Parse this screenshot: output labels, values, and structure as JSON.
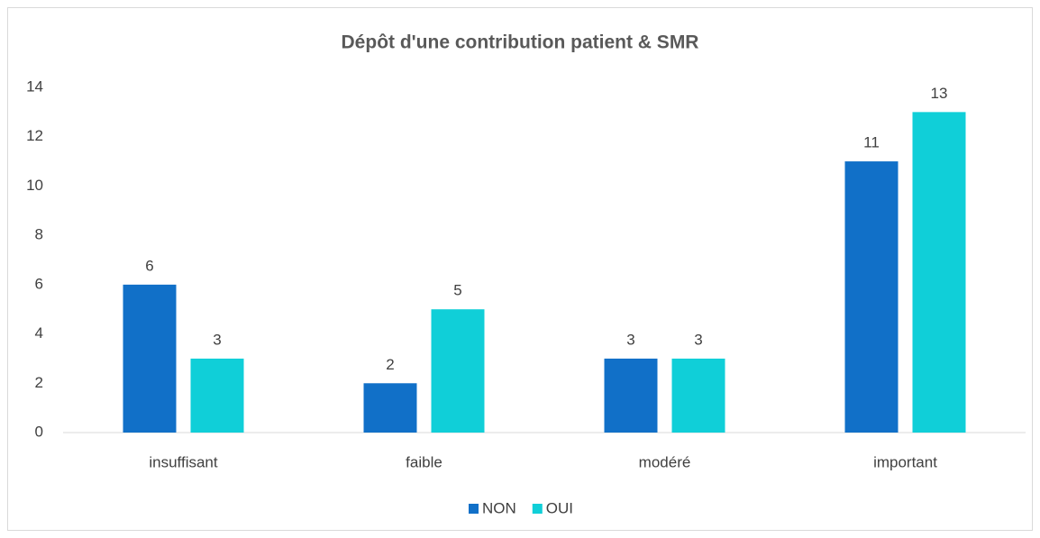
{
  "chart_data": {
    "type": "bar",
    "title": "Dépôt d'une contribution patient & SMR",
    "categories": [
      "insuffisant",
      "faible",
      "modéré",
      "important"
    ],
    "series": [
      {
        "name": "NON",
        "color": "#1170c8",
        "values": [
          6,
          2,
          3,
          11
        ]
      },
      {
        "name": "OUI",
        "color": "#10cfd8",
        "values": [
          3,
          5,
          3,
          13
        ]
      }
    ],
    "ylim": [
      0,
      14
    ],
    "yticks": [
      0,
      2,
      4,
      6,
      8,
      10,
      12,
      14
    ],
    "grid": false,
    "legend": "bottom"
  }
}
